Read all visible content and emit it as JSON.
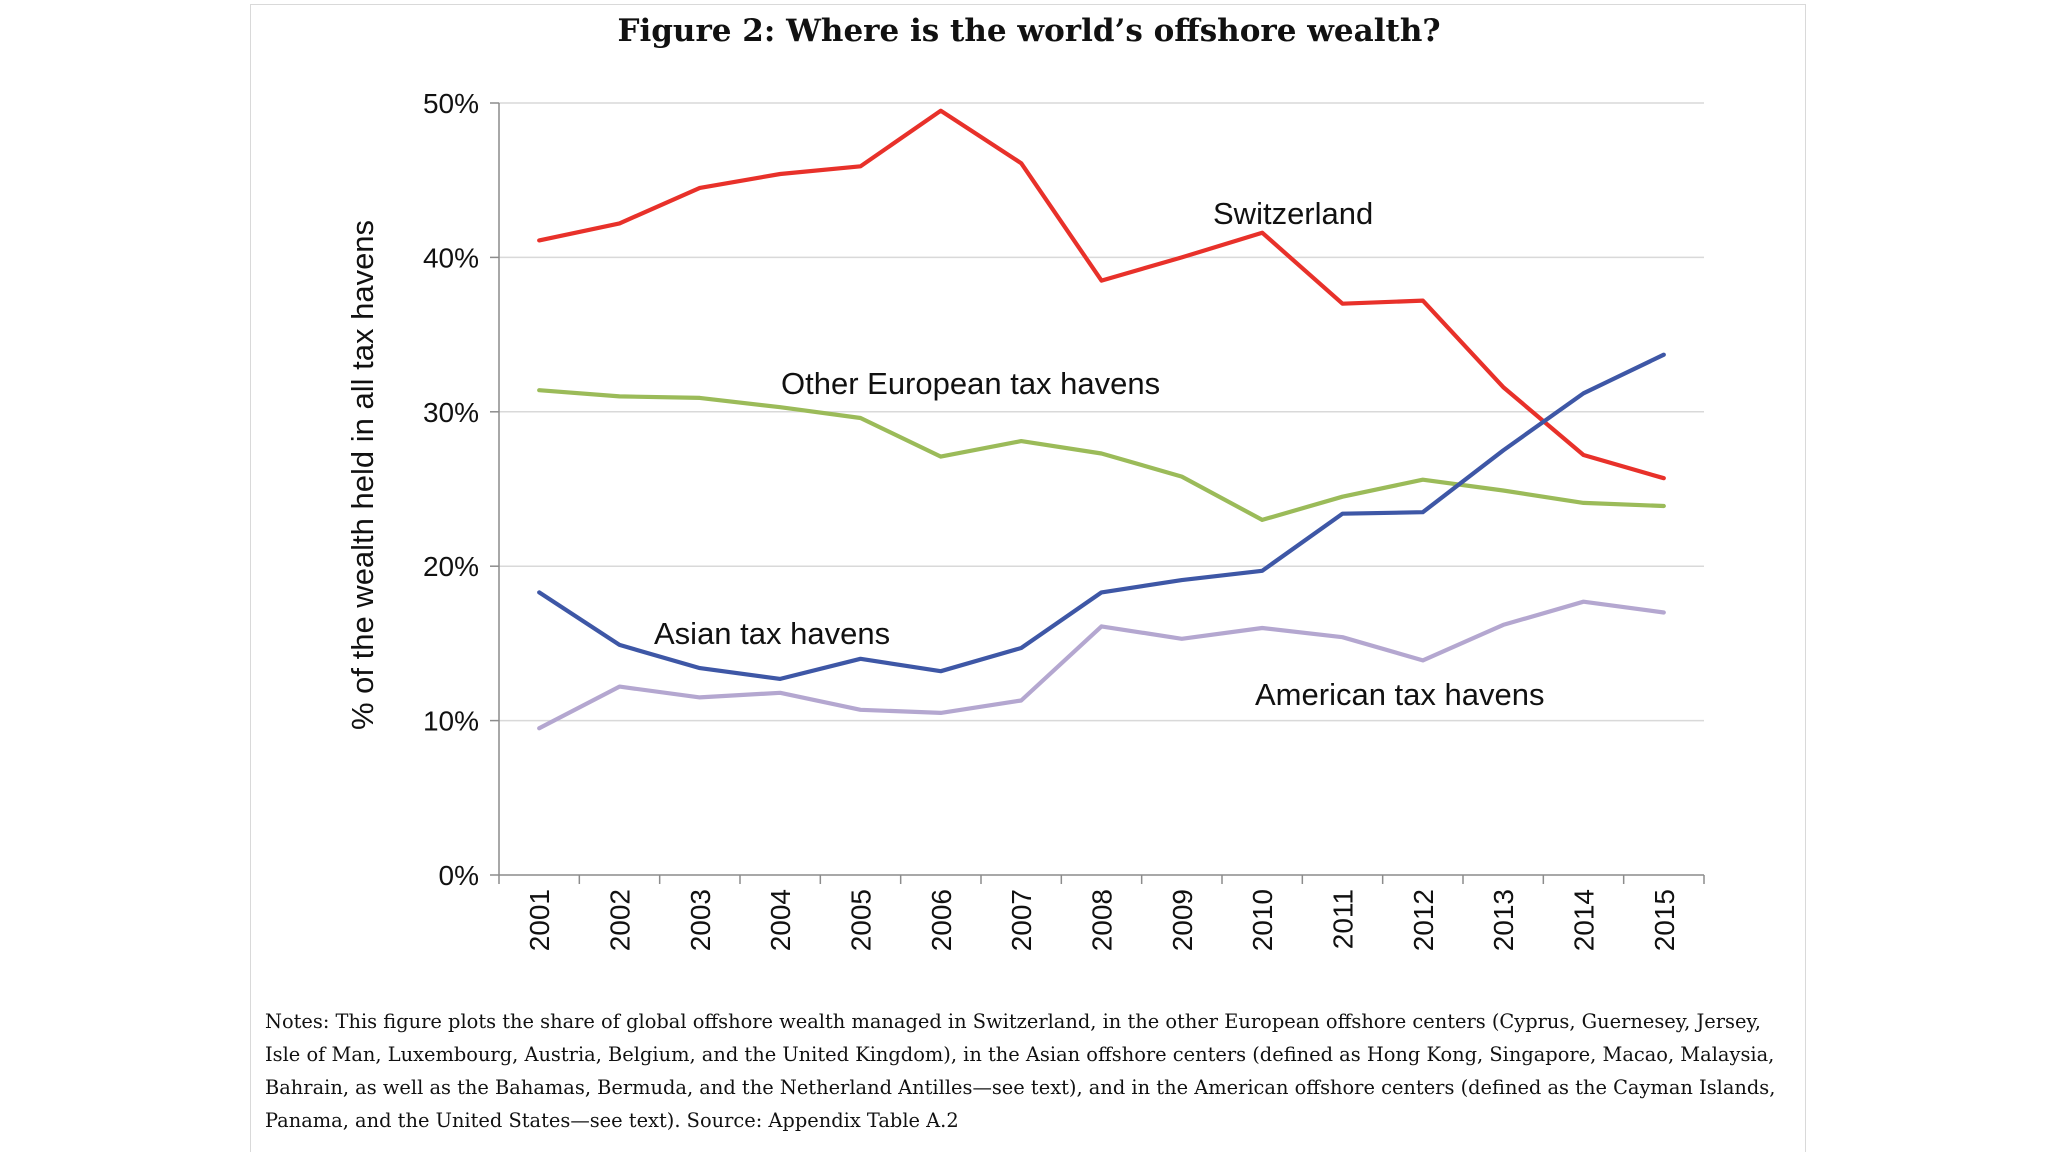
{
  "figure": {
    "title": "Figure 2: Where is the world’s offshore wealth?",
    "notes": "Notes: This figure plots the share of global offshore wealth managed in Switzerland, in the other European offshore centers (Cyprus, Guernesey, Jersey, Isle of Man, Luxembourg, Austria, Belgium, and the United Kingdom), in the Asian offshore centers (defined as Hong Kong, Singapore, Macao, Malaysia, Bahrain, as well as the Bahamas, Bermuda, and the Netherland Antilles—see text), and in the American offshore centers (defined as the Cayman Islands, Panama, and the United States—see text). Source: Appendix Table A.2"
  },
  "chart_data": {
    "type": "line",
    "title": "Figure 2: Where is the world’s offshore wealth?",
    "xlabel": "",
    "ylabel": "% of the wealth held in all tax havens",
    "categories": [
      "2001",
      "2002",
      "2003",
      "2004",
      "2005",
      "2006",
      "2007",
      "2008",
      "2009",
      "2010",
      "2011",
      "2012",
      "2013",
      "2014",
      "2015"
    ],
    "ylim": [
      0,
      50
    ],
    "yticks": [
      0,
      10,
      20,
      30,
      40,
      50
    ],
    "ytick_labels": [
      "0%",
      "10%",
      "20%",
      "30%",
      "40%",
      "50%"
    ],
    "grid": true,
    "series": [
      {
        "name": "Switzerland",
        "color": "#e8312a",
        "values": [
          41.1,
          42.2,
          44.5,
          45.4,
          45.9,
          49.5,
          46.1,
          38.5,
          40.0,
          41.6,
          37.0,
          37.2,
          31.6,
          27.2,
          25.7
        ]
      },
      {
        "name": "Other European tax havens",
        "color": "#9bbb59",
        "values": [
          31.4,
          31.0,
          30.9,
          30.3,
          29.6,
          27.1,
          28.1,
          27.3,
          25.8,
          23.0,
          24.5,
          25.6,
          24.9,
          24.1,
          23.9
        ]
      },
      {
        "name": "Asian tax havens",
        "color": "#3e57a6",
        "values": [
          18.3,
          14.9,
          13.4,
          12.7,
          14.0,
          13.2,
          14.7,
          18.3,
          19.1,
          19.7,
          23.4,
          23.5,
          27.5,
          31.2,
          33.7
        ]
      },
      {
        "name": "American tax havens",
        "color": "#b4a7d0",
        "values": [
          9.5,
          12.2,
          11.5,
          11.8,
          10.7,
          10.5,
          11.3,
          16.1,
          15.3,
          16.0,
          15.4,
          13.9,
          16.2,
          17.7,
          17.0
        ]
      }
    ]
  }
}
